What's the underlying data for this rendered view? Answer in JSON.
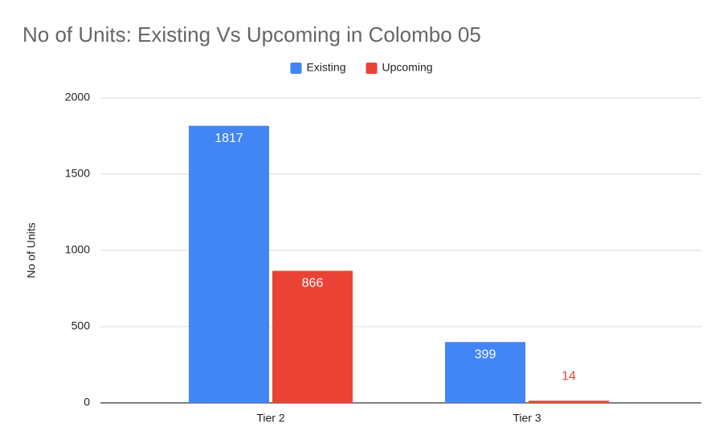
{
  "chart_data": {
    "type": "bar",
    "title": "No of Units: Existing Vs Upcoming in Colombo 05",
    "y_label": "No of Units",
    "categories": [
      "Tier 2",
      "Tier 3"
    ],
    "series": [
      {
        "name": "Existing",
        "color": "#4285f4",
        "values": [
          1817,
          399
        ]
      },
      {
        "name": "Upcoming",
        "color": "#ea4335",
        "values": [
          866,
          14
        ]
      }
    ],
    "ylim": [
      0,
      2000
    ],
    "yticks": [
      0,
      500,
      1000,
      1500,
      2000
    ],
    "grid": true,
    "legend": "top"
  }
}
